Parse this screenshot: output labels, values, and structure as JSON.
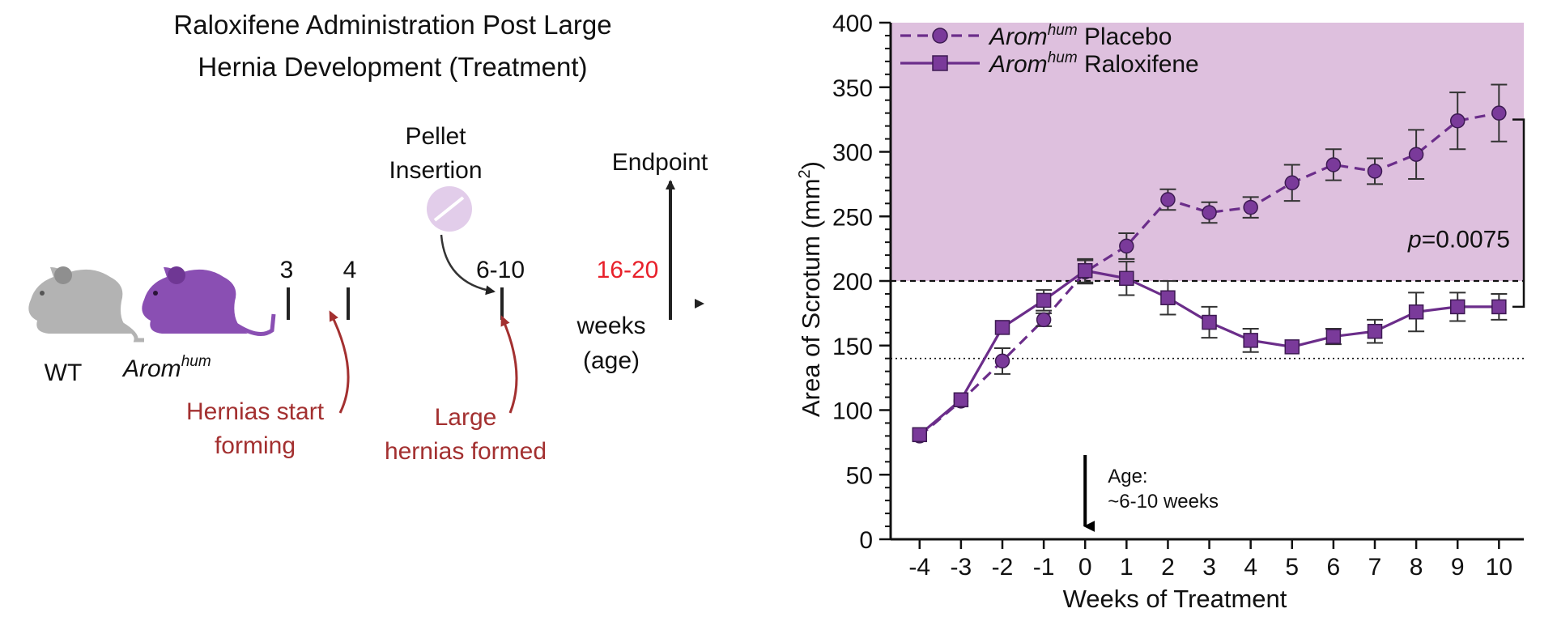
{
  "diagram": {
    "title_line1": "Raloxifene Administration Post Large",
    "title_line2": "Hernia Development (Treatment)",
    "mouse_wt_label": "WT",
    "mouse_arom_label_base": "Arom",
    "mouse_arom_label_sup": "hum",
    "ticks": [
      "3",
      "4",
      "6-10",
      "16-20"
    ],
    "pellet_line1": "Pellet",
    "pellet_line2": "Insertion",
    "endpoint_label": "Endpoint",
    "axis_label_line1": "weeks",
    "axis_label_line2": "(age)",
    "annotation1_line1": "Hernias start",
    "annotation1_line2": "forming",
    "annotation2_line1": "Large",
    "annotation2_line2": "hernias formed",
    "colors": {
      "wt_mouse": "#b3b3b3",
      "arom_mouse": "#8a4fb3",
      "red_text": "#a33030",
      "highlight_tick": "#e8202a",
      "pellet": "#e2cdea"
    }
  },
  "chart_data": {
    "type": "line",
    "xlabel": "Weeks of Treatment",
    "ylabel_base": "Area of Scrotum (mm",
    "ylabel_sup": "2",
    "ylabel_tail": ")",
    "x": [
      -4,
      -3,
      -2,
      -1,
      0,
      1,
      2,
      3,
      4,
      5,
      6,
      7,
      8,
      9,
      10
    ],
    "x_tick_labels": [
      "-4",
      "-3",
      "-2",
      "-1",
      "0",
      "1",
      "2",
      "3",
      "4",
      "5",
      "6",
      "7",
      "8",
      "9",
      "10"
    ],
    "ylim": [
      0,
      400
    ],
    "y_ticks": [
      0,
      50,
      100,
      150,
      200,
      250,
      300,
      350,
      400
    ],
    "y_tick_labels": [
      "0",
      "50",
      "100",
      "150",
      "200",
      "250",
      "300",
      "350",
      "400"
    ],
    "shaded_region": [
      200,
      400
    ],
    "reference_lines": [
      {
        "y": 200,
        "style": "dashed"
      },
      {
        "y": 140,
        "style": "dotted"
      }
    ],
    "series": [
      {
        "name_base": "Arom",
        "name_sup": "hum",
        "name_tail": " Placebo",
        "marker": "circle",
        "line": "dashed",
        "values": [
          80,
          107,
          138,
          170,
          207,
          227,
          263,
          253,
          257,
          276,
          290,
          285,
          298,
          324,
          330
        ],
        "errors": [
          0,
          0,
          10,
          5,
          9,
          10,
          8,
          8,
          8,
          14,
          12,
          10,
          19,
          22,
          22
        ]
      },
      {
        "name_base": "Arom",
        "name_sup": "hum",
        "name_tail": " Raloxifene",
        "marker": "square",
        "line": "solid",
        "values": [
          81,
          108,
          164,
          185,
          208,
          202,
          187,
          168,
          154,
          149,
          157,
          161,
          176,
          180,
          180
        ],
        "errors": [
          0,
          0,
          0,
          8,
          9,
          13,
          13,
          12,
          9,
          0,
          6,
          9,
          15,
          11,
          10
        ]
      }
    ],
    "bracket": {
      "from_value": 330,
      "to_value": 180,
      "label_italic": "p",
      "label_text": "=0.0075"
    },
    "arrow_annotation": {
      "x": 0,
      "line1": "Age:",
      "line2": "~6-10 weeks"
    },
    "legend_position": "top-left",
    "colors": {
      "series": "#6b2d8a",
      "marker_fill": "#7a3a9a",
      "shade": "#dec0de",
      "axis": "#111111"
    }
  }
}
